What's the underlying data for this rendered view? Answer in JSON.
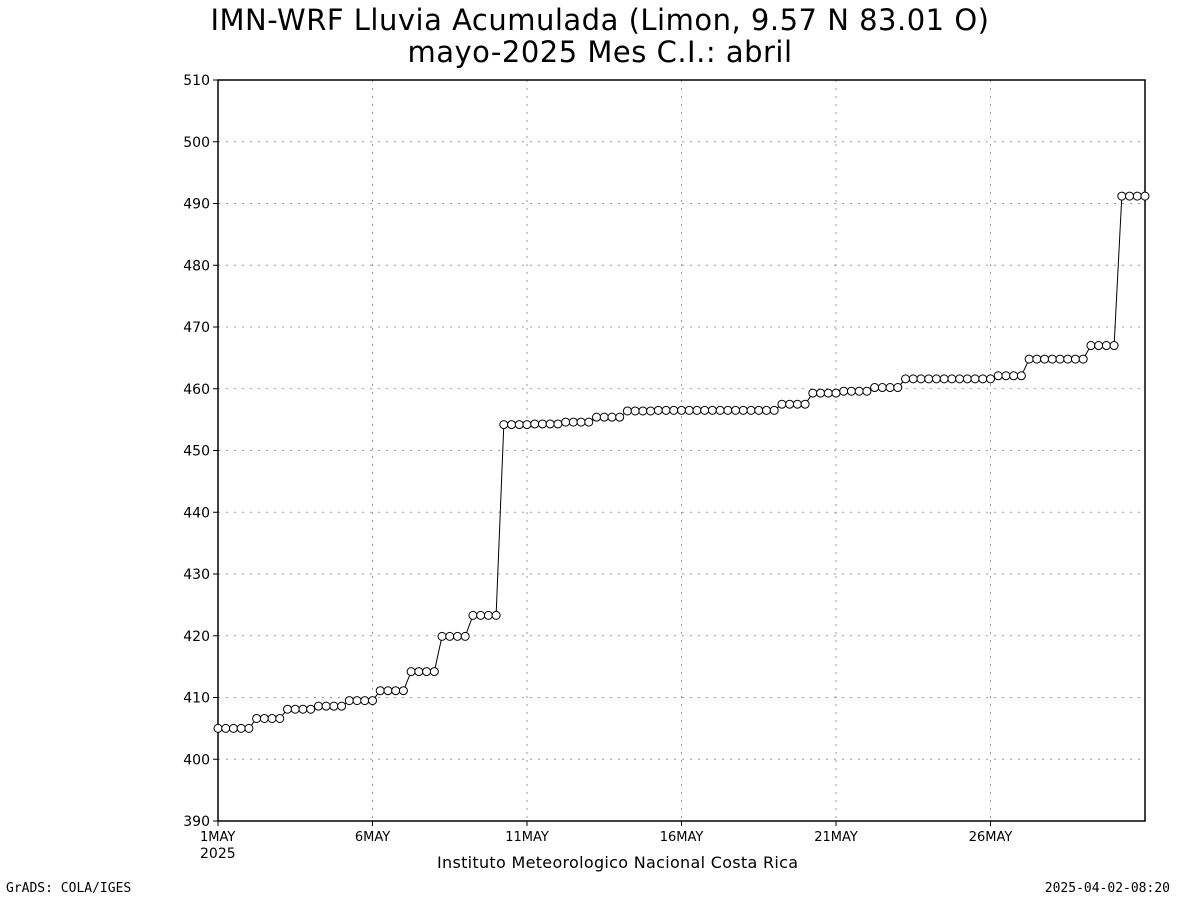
{
  "chart_data": {
    "type": "line",
    "title": "IMN-WRF  Lluvia Acumulada (Limon, 9.57  N 83.01  O)",
    "subtitle": "mayo-2025 Mes C.I.: abril",
    "xlabel": "Instituto Meteorologico Nacional Costa Rica",
    "ylabel": "",
    "ylim": [
      390,
      510
    ],
    "yticks": [
      390,
      400,
      410,
      420,
      430,
      440,
      450,
      460,
      470,
      480,
      490,
      500,
      510
    ],
    "xlim_days": [
      1,
      31
    ],
    "xticks": [
      {
        "day": 1,
        "label": "1MAY",
        "sublabel": "2025"
      },
      {
        "day": 6,
        "label": "6MAY",
        "sublabel": ""
      },
      {
        "day": 11,
        "label": "11MAY",
        "sublabel": ""
      },
      {
        "day": 16,
        "label": "16MAY",
        "sublabel": ""
      },
      {
        "day": 21,
        "label": "21MAY",
        "sublabel": ""
      },
      {
        "day": 26,
        "label": "26MAY",
        "sublabel": ""
      }
    ],
    "grid": true,
    "marker": "open-circle",
    "series": [
      {
        "points_per_day": 4,
        "values": [
          405.0,
          405.0,
          405.0,
          405.0,
          405.0,
          406.6,
          406.6,
          406.6,
          406.6,
          408.1,
          408.1,
          408.1,
          408.1,
          408.6,
          408.6,
          408.6,
          408.6,
          409.5,
          409.5,
          409.5,
          409.5,
          411.1,
          411.1,
          411.1,
          411.1,
          414.2,
          414.2,
          414.2,
          414.2,
          419.9,
          419.9,
          419.9,
          419.9,
          423.3,
          423.3,
          423.3,
          423.3,
          454.2,
          454.2,
          454.2,
          454.2,
          454.3,
          454.3,
          454.3,
          454.3,
          454.6,
          454.6,
          454.6,
          454.6,
          455.4,
          455.4,
          455.4,
          455.4,
          456.4,
          456.4,
          456.4,
          456.4,
          456.5,
          456.5,
          456.5,
          456.5,
          456.5,
          456.5,
          456.5,
          456.5,
          456.5,
          456.5,
          456.5,
          456.5,
          456.5,
          456.5,
          456.5,
          456.5,
          457.5,
          457.5,
          457.5,
          457.5,
          459.3,
          459.3,
          459.3,
          459.3,
          459.6,
          459.6,
          459.6,
          459.6,
          460.2,
          460.2,
          460.2,
          460.2,
          461.6,
          461.6,
          461.6,
          461.6,
          461.6,
          461.6,
          461.6,
          461.6,
          461.6,
          461.6,
          461.6,
          461.6,
          462.1,
          462.1,
          462.1,
          462.1,
          464.8,
          464.8,
          464.8,
          464.8,
          464.8,
          464.8,
          464.8,
          464.8,
          467.0,
          467.0,
          467.0,
          467.0,
          491.2,
          491.2,
          491.2,
          491.2
        ]
      }
    ]
  },
  "footer": {
    "left": "GrADS: COLA/IGES",
    "right": "2025-04-02-08:20"
  },
  "colors": {
    "line": "#000000",
    "marker_fill": "#ffffff",
    "grid": "#9a9a9a"
  }
}
